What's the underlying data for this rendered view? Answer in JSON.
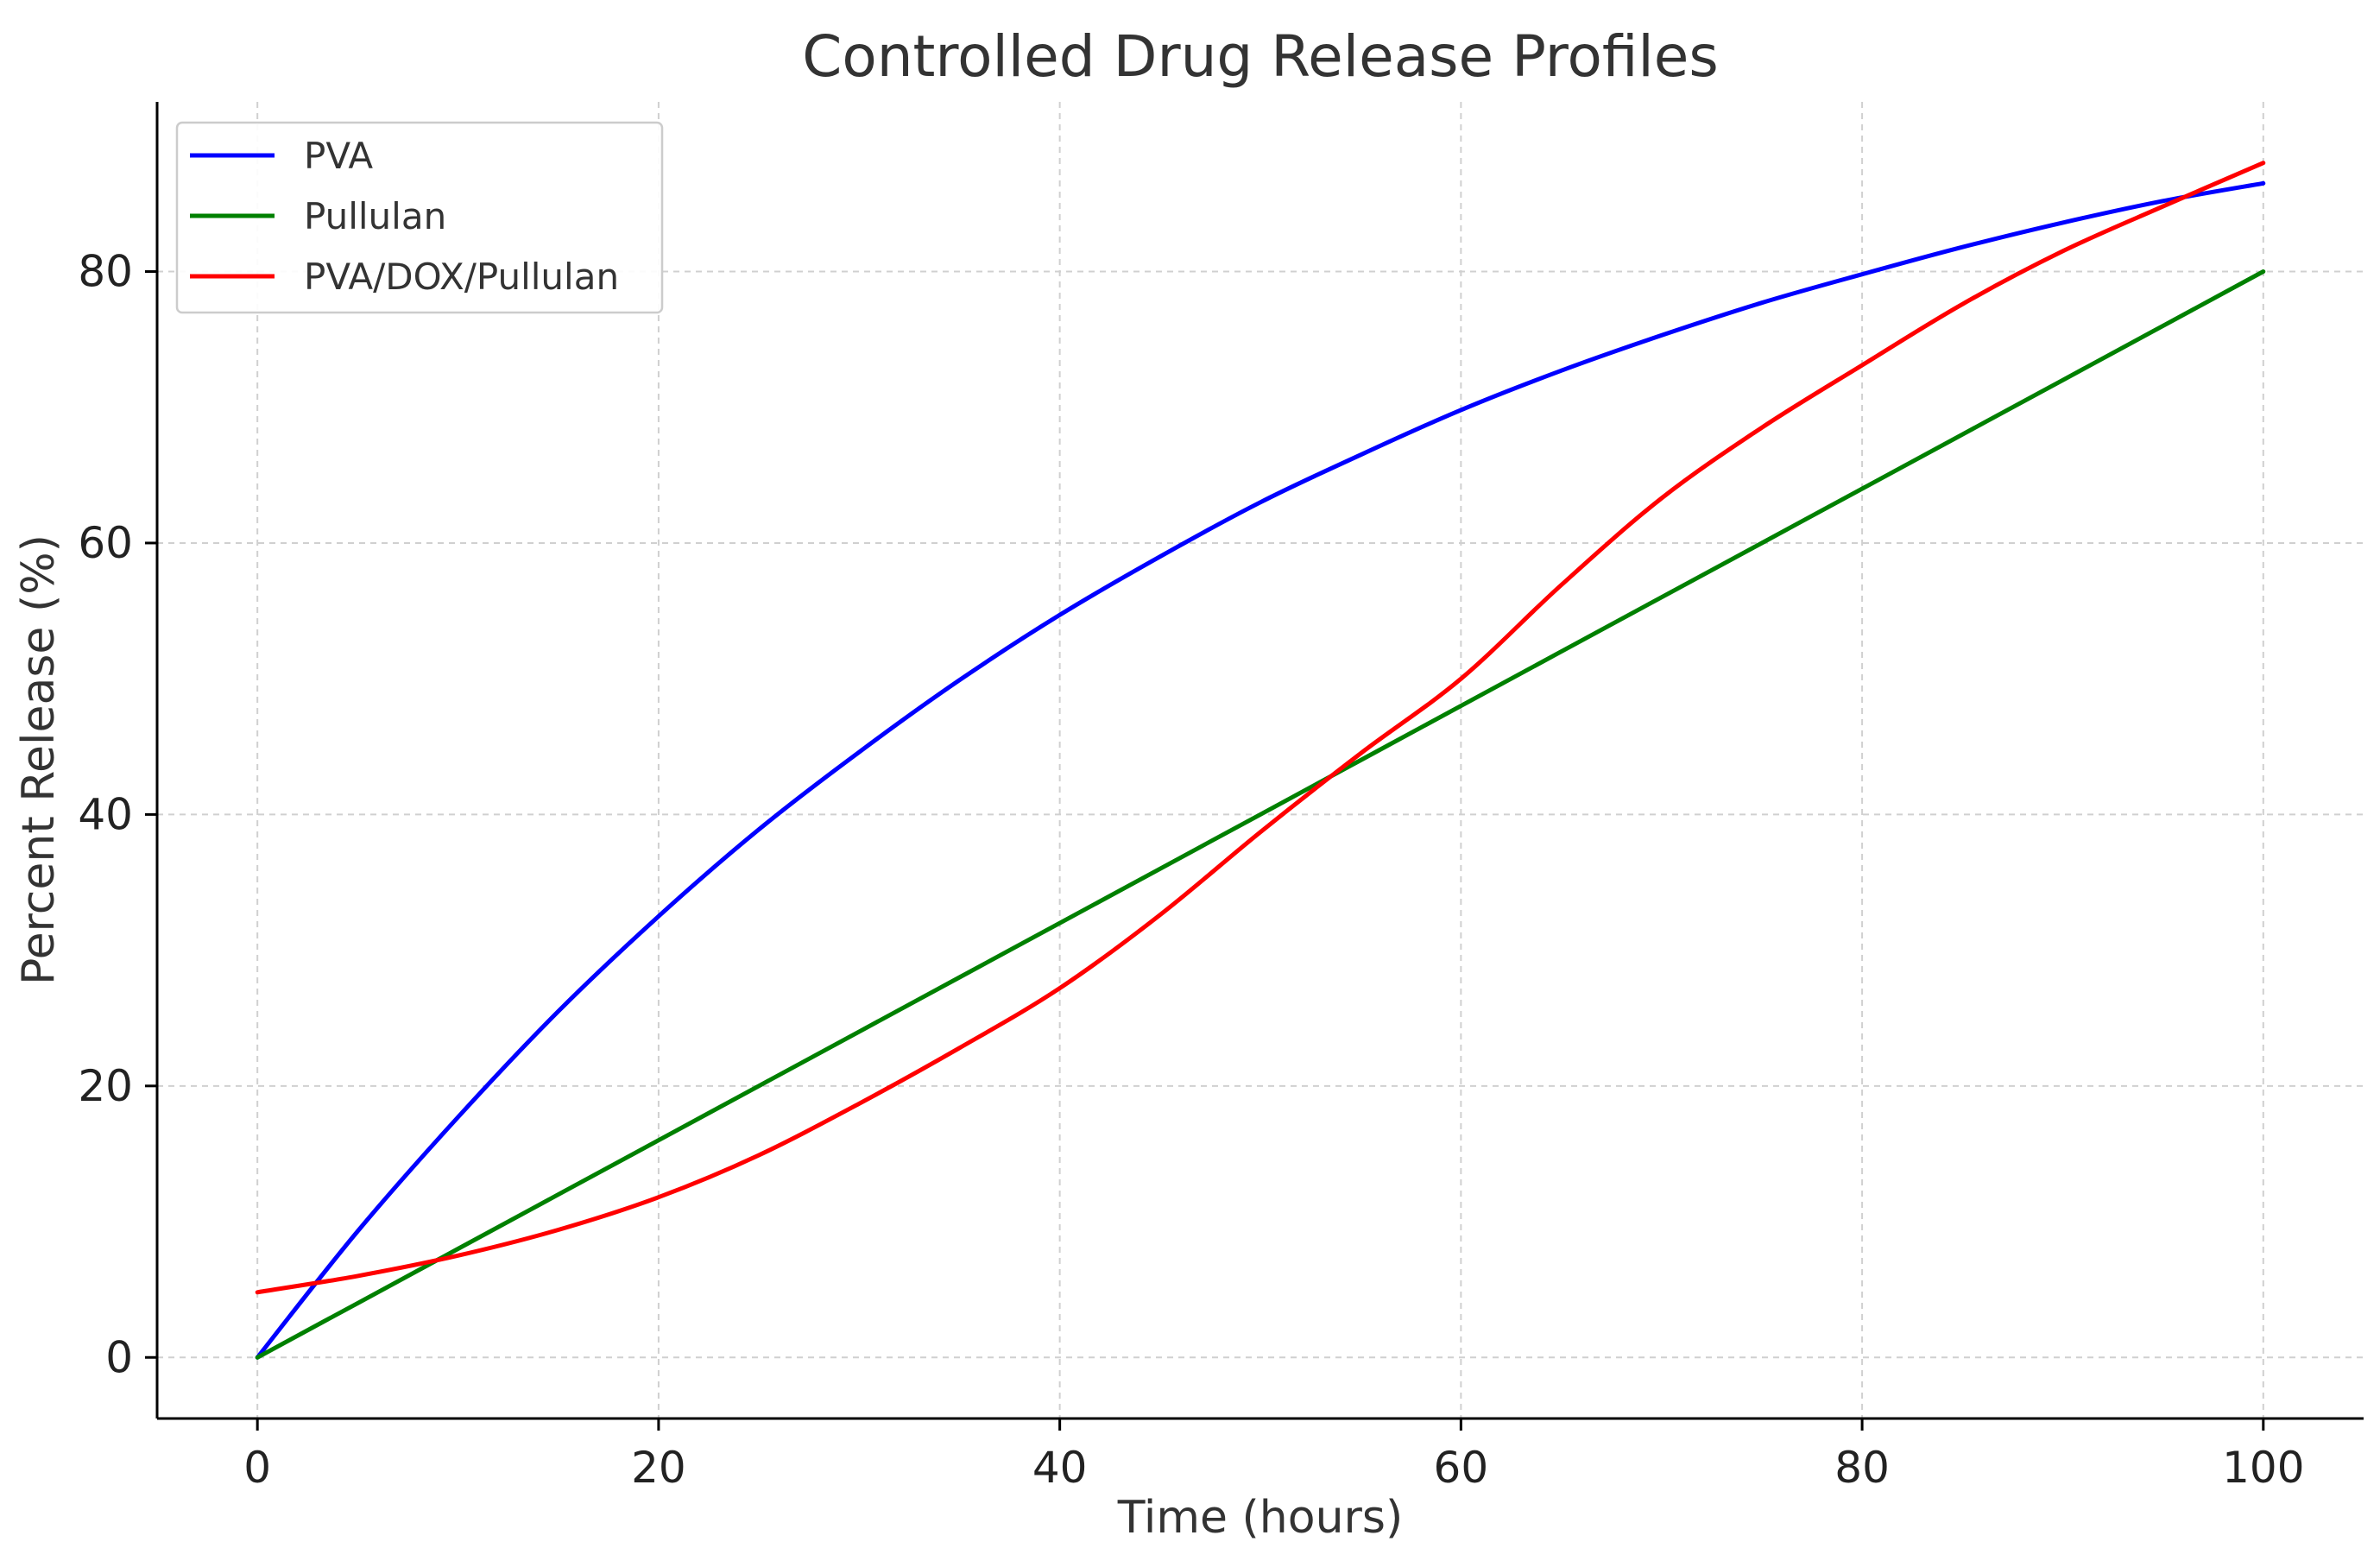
{
  "chart_data": {
    "type": "line",
    "title": "Controlled Drug Release Profiles",
    "xlabel": "Time (hours)",
    "ylabel": "Percent Release (%)",
    "xlim": [
      -5,
      105
    ],
    "ylim": [
      -4.5,
      92.5
    ],
    "xticks": [
      0,
      20,
      40,
      60,
      80,
      100
    ],
    "yticks": [
      0,
      20,
      40,
      60,
      80
    ],
    "grid": true,
    "legend_position": "top-left",
    "x": [
      0,
      5,
      10,
      15,
      20,
      25,
      30,
      35,
      40,
      45,
      50,
      55,
      60,
      65,
      70,
      75,
      80,
      85,
      90,
      95,
      100
    ],
    "series": [
      {
        "name": "PVA",
        "color": "#0000ff",
        "values": [
          0,
          9.3,
          17.7,
          25.5,
          32.5,
          38.9,
          44.6,
          49.9,
          54.7,
          59.0,
          63.0,
          66.5,
          69.8,
          72.7,
          75.3,
          77.7,
          79.8,
          81.8,
          83.6,
          85.2,
          86.5
        ]
      },
      {
        "name": "Pullulan",
        "color": "#008000",
        "values": [
          0,
          4,
          8,
          12,
          16,
          20,
          24,
          28,
          32,
          36,
          40,
          44,
          48,
          52,
          56,
          60,
          64,
          68,
          72,
          76,
          80
        ]
      },
      {
        "name": "PVA/DOX/Pullulan",
        "color": "#ff0000",
        "values": [
          4.8,
          6.0,
          7.5,
          9.4,
          11.8,
          14.9,
          18.7,
          22.8,
          27.2,
          32.6,
          38.7,
          44.5,
          50.0,
          56.9,
          63.3,
          68.5,
          73.1,
          77.6,
          81.5,
          84.8,
          88.0
        ]
      }
    ]
  }
}
